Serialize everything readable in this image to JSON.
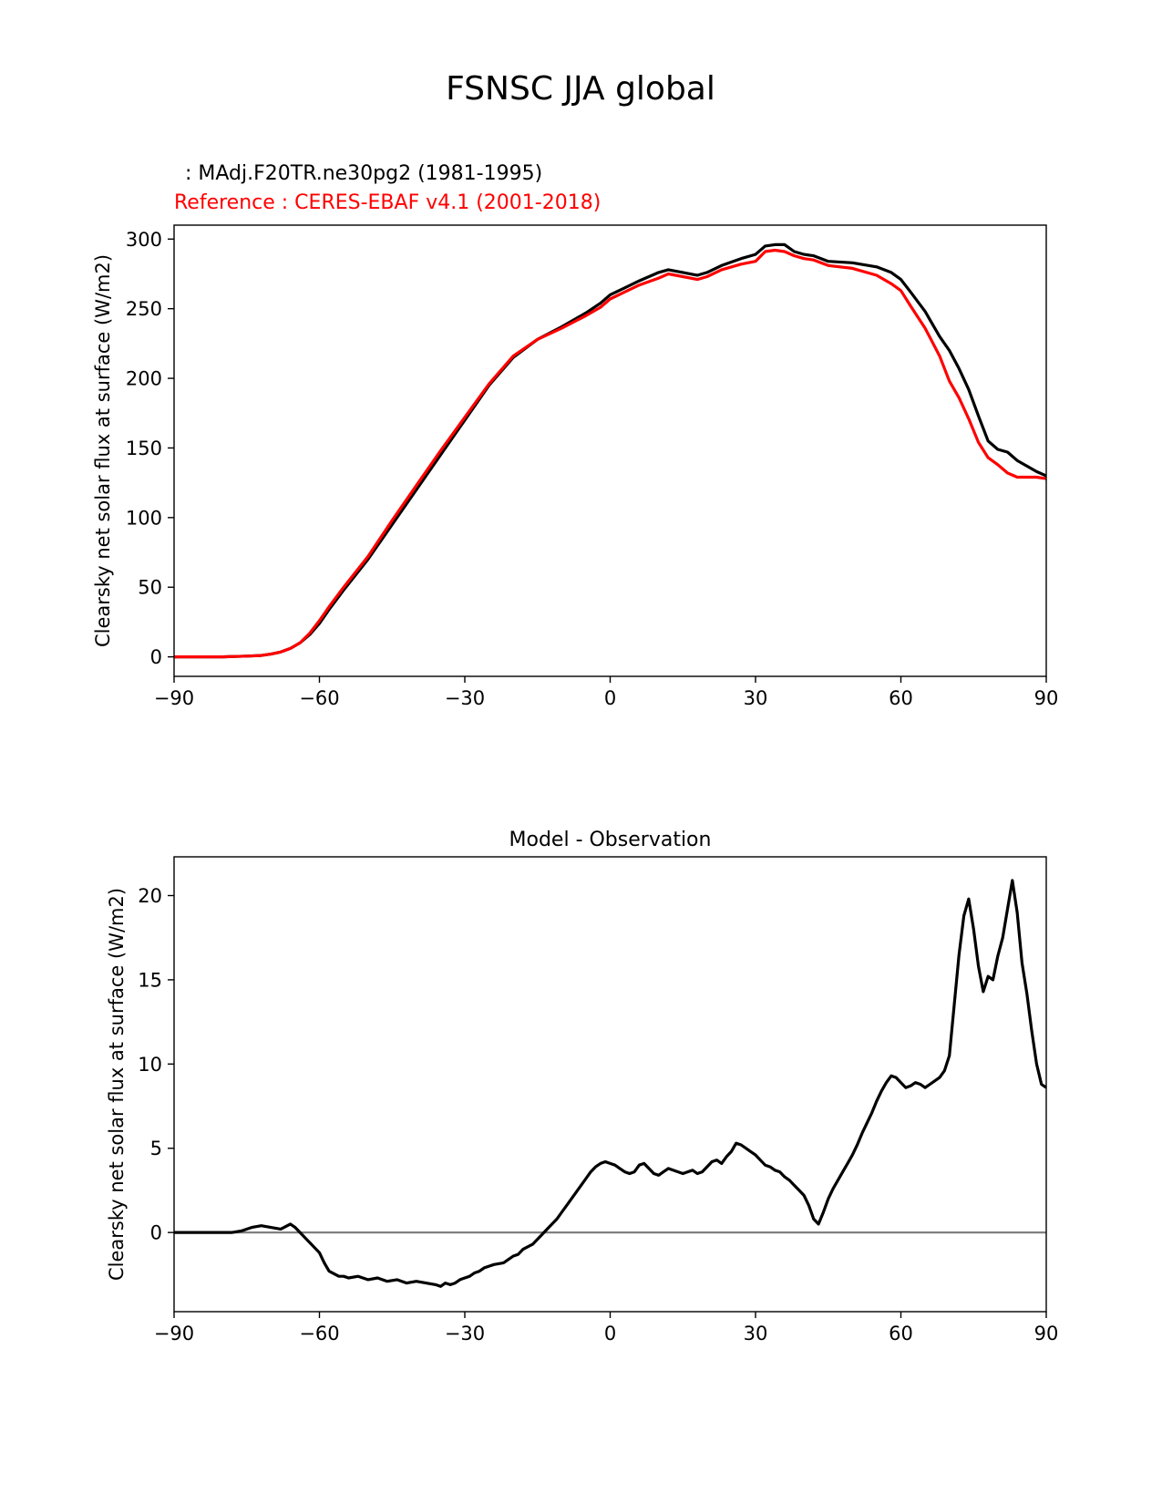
{
  "figure": {
    "title": "FSNSC JJA global",
    "test_label": " : MAdj.F20TR.ne30pg2 (1981-1995)",
    "ref_label": "Reference : CERES-EBAF v4.1 (2001-2018)"
  },
  "colors": {
    "test": "#000000",
    "reference": "#ff0000",
    "zero_line": "#808080",
    "axes": "#000000"
  },
  "chart_data": [
    {
      "type": "line",
      "title": "",
      "xlabel": "",
      "ylabel": "Clearsky net solar flux at surface (W/m2)",
      "xlim": [
        -90,
        90
      ],
      "ylim": [
        -14,
        310
      ],
      "xticks": [
        -90,
        -60,
        -30,
        0,
        30,
        60,
        90
      ],
      "xtick_labels": [
        "−90",
        "−60",
        "−30",
        "0",
        "30",
        "60",
        "90"
      ],
      "yticks": [
        0,
        50,
        100,
        150,
        200,
        250,
        300
      ],
      "ytick_labels": [
        "0",
        "50",
        "100",
        "150",
        "200",
        "250",
        "300"
      ],
      "series": [
        {
          "key": "test",
          "color": "#000000",
          "x": [
            -90,
            -85,
            -80,
            -75,
            -72,
            -70,
            -68,
            -66,
            -64,
            -62,
            -60,
            -58,
            -55,
            -50,
            -45,
            -40,
            -35,
            -30,
            -25,
            -20,
            -15,
            -10,
            -5,
            -2,
            0,
            3,
            6,
            10,
            12,
            15,
            18,
            20,
            23,
            27,
            30,
            32,
            34,
            36,
            38,
            40,
            42,
            45,
            50,
            55,
            58,
            60,
            62,
            65,
            68,
            70,
            72,
            74,
            76,
            78,
            80,
            82,
            84,
            86,
            88,
            90
          ],
          "y": [
            0,
            0,
            0,
            0.5,
            1,
            2,
            3.5,
            6,
            10,
            16,
            24,
            34,
            48,
            70,
            95,
            120,
            145,
            170,
            195,
            215,
            228,
            237,
            247,
            254,
            260,
            265,
            270,
            276,
            278,
            276,
            274,
            276,
            281,
            286,
            289,
            295,
            296,
            296,
            291,
            289,
            288,
            284,
            283,
            280,
            276,
            271,
            262,
            248,
            230,
            220,
            207,
            192,
            173,
            155,
            149,
            147,
            141,
            137,
            133,
            130
          ]
        },
        {
          "key": "reference",
          "color": "#ff0000",
          "x": [
            -90,
            -85,
            -80,
            -75,
            -72,
            -70,
            -68,
            -66,
            -64,
            -62,
            -60,
            -58,
            -55,
            -50,
            -45,
            -40,
            -35,
            -30,
            -25,
            -20,
            -15,
            -10,
            -5,
            -2,
            0,
            3,
            6,
            10,
            12,
            15,
            18,
            20,
            23,
            27,
            30,
            32,
            34,
            36,
            38,
            40,
            42,
            45,
            50,
            55,
            58,
            60,
            62,
            65,
            68,
            70,
            72,
            74,
            76,
            78,
            80,
            82,
            84,
            86,
            88,
            90
          ],
          "y": [
            0,
            0,
            0,
            0.5,
            1,
            2,
            3.5,
            6,
            10,
            17,
            26,
            36,
            50,
            72,
            98,
            123,
            148,
            172,
            196,
            216,
            228,
            236,
            245,
            251,
            257,
            262,
            267,
            272,
            275,
            273,
            271,
            273,
            278,
            282,
            284,
            291,
            292,
            291,
            288,
            286,
            285,
            281,
            279,
            274,
            268,
            263,
            252,
            236,
            216,
            198,
            186,
            171,
            154,
            143,
            138,
            132,
            129,
            129,
            129,
            128
          ]
        }
      ]
    },
    {
      "type": "line",
      "title": "Model - Observation",
      "xlabel": "",
      "ylabel": "Clearsky net solar flux at surface (W/m2)",
      "xlim": [
        -90,
        90
      ],
      "ylim": [
        -4.7,
        22.3
      ],
      "xticks": [
        -90,
        -60,
        -30,
        0,
        30,
        60,
        90
      ],
      "xtick_labels": [
        "−90",
        "−60",
        "−30",
        "0",
        "30",
        "60",
        "90"
      ],
      "yticks": [
        0,
        5,
        10,
        15,
        20
      ],
      "ytick_labels": [
        "0",
        "5",
        "10",
        "15",
        "20"
      ],
      "zero_line": 0,
      "series": [
        {
          "key": "difference",
          "color": "#000000",
          "x": [
            -90,
            -85,
            -80,
            -78,
            -76,
            -74,
            -72,
            -70,
            -68,
            -66,
            -65,
            -64,
            -63,
            -62,
            -60,
            -59,
            -58,
            -56,
            -55,
            -54,
            -52,
            -50,
            -48,
            -46,
            -44,
            -42,
            -40,
            -38,
            -36,
            -35,
            -34,
            -33,
            -32,
            -31,
            -30,
            -29,
            -28,
            -27,
            -26,
            -25,
            -24,
            -22,
            -21,
            -20,
            -19,
            -18,
            -16,
            -15,
            -14,
            -13,
            -12,
            -11,
            -10,
            -9,
            -8,
            -7,
            -6,
            -5,
            -4,
            -3,
            -2,
            -1,
            0,
            1,
            2,
            3,
            4,
            5,
            6,
            7,
            8,
            9,
            10,
            11,
            12,
            13,
            14,
            15,
            16,
            17,
            18,
            19,
            20,
            21,
            22,
            23,
            24,
            25,
            26,
            27,
            28,
            29,
            30,
            31,
            32,
            33,
            34,
            35,
            36,
            37,
            38,
            39,
            40,
            41,
            42,
            43,
            44,
            45,
            46,
            47,
            48,
            49,
            50,
            51,
            52,
            53,
            54,
            55,
            56,
            57,
            58,
            59,
            60,
            61,
            62,
            63,
            64,
            65,
            66,
            67,
            68,
            69,
            70,
            71,
            72,
            73,
            74,
            75,
            76,
            77,
            78,
            79,
            80,
            81,
            82,
            83,
            84,
            85,
            86,
            87,
            88,
            89,
            90
          ],
          "y": [
            0,
            0,
            0,
            0,
            0.1,
            0.3,
            0.4,
            0.3,
            0.2,
            0.5,
            0.3,
            0,
            -0.3,
            -0.6,
            -1.2,
            -1.8,
            -2.3,
            -2.6,
            -2.6,
            -2.7,
            -2.6,
            -2.8,
            -2.7,
            -2.9,
            -2.8,
            -3.0,
            -2.9,
            -3.0,
            -3.1,
            -3.2,
            -3.0,
            -3.1,
            -3.0,
            -2.8,
            -2.7,
            -2.6,
            -2.4,
            -2.3,
            -2.1,
            -2.0,
            -1.9,
            -1.8,
            -1.6,
            -1.4,
            -1.3,
            -1.0,
            -0.7,
            -0.4,
            -0.1,
            0.2,
            0.5,
            0.8,
            1.2,
            1.6,
            2.0,
            2.4,
            2.8,
            3.2,
            3.6,
            3.9,
            4.1,
            4.2,
            4.1,
            4.0,
            3.8,
            3.6,
            3.5,
            3.6,
            4.0,
            4.1,
            3.8,
            3.5,
            3.4,
            3.6,
            3.8,
            3.7,
            3.6,
            3.5,
            3.6,
            3.7,
            3.5,
            3.6,
            3.9,
            4.2,
            4.3,
            4.1,
            4.5,
            4.8,
            5.3,
            5.2,
            5.0,
            4.8,
            4.6,
            4.3,
            4.0,
            3.9,
            3.7,
            3.6,
            3.3,
            3.1,
            2.8,
            2.5,
            2.2,
            1.6,
            0.8,
            0.5,
            1.2,
            2.0,
            2.6,
            3.1,
            3.6,
            4.1,
            4.6,
            5.2,
            5.9,
            6.5,
            7.1,
            7.8,
            8.4,
            8.9,
            9.3,
            9.2,
            8.9,
            8.6,
            8.7,
            8.9,
            8.8,
            8.6,
            8.8,
            9.0,
            9.2,
            9.6,
            10.5,
            13.5,
            16.5,
            18.8,
            19.8,
            18.0,
            15.8,
            14.3,
            15.2,
            15.0,
            16.4,
            17.5,
            19.2,
            20.9,
            19.0,
            16.0,
            14.2,
            12.0,
            10.0,
            8.8,
            8.6
          ]
        }
      ]
    }
  ]
}
